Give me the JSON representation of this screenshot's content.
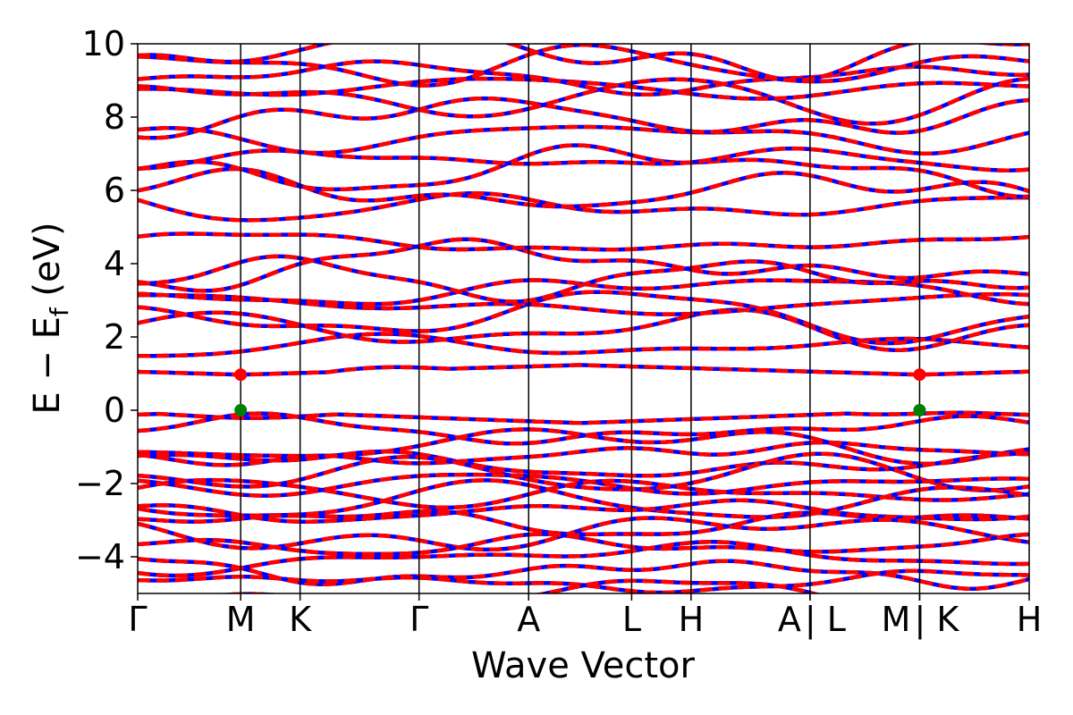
{
  "chart_data": {
    "type": "line",
    "xlabel": "Wave Vector",
    "ylabel": {
      "prefix": "E − E",
      "subscript": "f",
      "suffix": " (eV)"
    },
    "ylim": [
      -5,
      10
    ],
    "yticks": [
      10,
      8,
      6,
      4,
      2,
      0,
      -2,
      -4
    ],
    "ytick_labels": [
      "10",
      "8",
      "6",
      "4",
      "2",
      "0",
      "−2",
      "−4"
    ],
    "kpath": [
      {
        "label": "Γ",
        "x": 0.0
      },
      {
        "label": "M",
        "x": 1.0
      },
      {
        "label": "K",
        "x": 1.577
      },
      {
        "label": "Γ",
        "x": 2.732
      },
      {
        "label": "A",
        "x": 3.796
      },
      {
        "label": "L",
        "x": 4.796
      },
      {
        "label": "H",
        "x": 5.373
      },
      {
        "label": "A",
        "x": 6.528
      },
      {
        "label": "| L",
        "x": 6.528
      },
      {
        "label": "M",
        "x": 7.592
      },
      {
        "label": "| K",
        "x": 7.592
      },
      {
        "label": "H",
        "x": 8.656
      }
    ],
    "vlines": [
      1.0,
      1.577,
      2.732,
      3.796,
      4.796,
      5.373,
      6.528,
      7.592
    ],
    "xlim": [
      0,
      8.656
    ],
    "series_colors": {
      "spin_up": "#0000ff",
      "spin_down": "#ff0000"
    },
    "markers": [
      {
        "name": "CBM",
        "color": "#ff0000",
        "points": [
          [
            1.0,
            0.97
          ],
          [
            7.592,
            0.97
          ]
        ]
      },
      {
        "name": "VBM",
        "color": "#008000",
        "points": [
          [
            1.0,
            0.0
          ],
          [
            7.592,
            0.0
          ]
        ]
      }
    ],
    "band_anchor_energies": {
      "valence": [
        -0.08,
        -0.55,
        -0.95,
        -1.2,
        -1.45,
        -1.75,
        -2.0,
        -2.25,
        -2.5,
        -2.75,
        -3.05,
        -3.35,
        -3.7,
        -4.05,
        -4.4,
        -4.7,
        -5.0
      ],
      "conduction": [
        0.97,
        1.75,
        2.2,
        2.6,
        2.9,
        3.25,
        3.6,
        4.0,
        4.55,
        5.55,
        5.95,
        6.6,
        6.85,
        7.5,
        8.0,
        8.5,
        8.8,
        9.1,
        9.4,
        9.75
      ]
    }
  }
}
